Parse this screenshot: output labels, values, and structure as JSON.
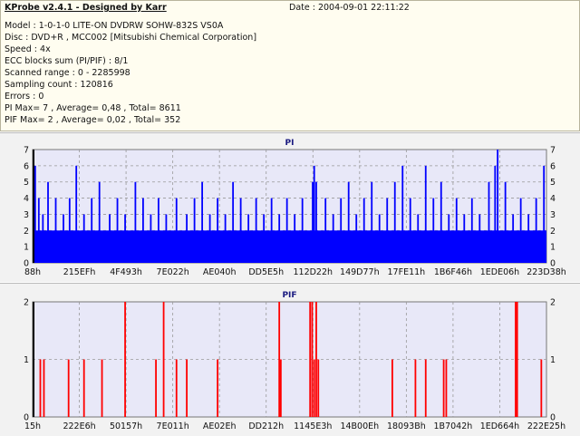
{
  "info": {
    "app_title": "KProbe v2.4.1 - Designed by Karr",
    "date": "Date : 2004-09-01 22:11:22",
    "lines": [
      "Model : 1-0-1-0 LITE-ON DVDRW SOHW-832S  VS0A",
      "Disc : DVD+R , MCC002 [Mitsubishi Chemical Corporation]",
      "Speed : 4x",
      "ECC blocks sum (PI/PIF) : 8/1",
      "Scanned range : 0 - 2285998",
      "Sampling count : 120816",
      "Errors : 0",
      "PI Max= 7 , Average= 0,48 , Total= 8611",
      "PIF Max= 2 , Average= 0,02 , Total= 352"
    ]
  },
  "colors": {
    "pi_series": "#0000ff",
    "pif_series": "#ff0000",
    "plot_background": "#e8e8f8",
    "grid": "#999999"
  },
  "chart_data": [
    {
      "type": "bar",
      "title": "PI",
      "xlabel": "",
      "ylabel": "",
      "ylim": [
        0,
        7
      ],
      "y_ticks": [
        0,
        1,
        2,
        3,
        4,
        5,
        6,
        7
      ],
      "x_tick_labels": [
        "88h",
        "215EFh",
        "4F493h",
        "7E022h",
        "AE040h",
        "DD5E5h",
        "112D22h",
        "149D77h",
        "17FE11h",
        "1B6F46h",
        "1EDE06h",
        "223D38h"
      ],
      "grid": true,
      "baseline_value": 2,
      "spikes": [
        {
          "x": 0.005,
          "y": 6
        },
        {
          "x": 0.012,
          "y": 4
        },
        {
          "x": 0.02,
          "y": 3
        },
        {
          "x": 0.03,
          "y": 5
        },
        {
          "x": 0.045,
          "y": 4
        },
        {
          "x": 0.06,
          "y": 3
        },
        {
          "x": 0.072,
          "y": 4
        },
        {
          "x": 0.085,
          "y": 6
        },
        {
          "x": 0.1,
          "y": 3
        },
        {
          "x": 0.115,
          "y": 4
        },
        {
          "x": 0.13,
          "y": 5
        },
        {
          "x": 0.15,
          "y": 3
        },
        {
          "x": 0.165,
          "y": 4
        },
        {
          "x": 0.18,
          "y": 3
        },
        {
          "x": 0.2,
          "y": 5
        },
        {
          "x": 0.215,
          "y": 4
        },
        {
          "x": 0.23,
          "y": 3
        },
        {
          "x": 0.245,
          "y": 4
        },
        {
          "x": 0.26,
          "y": 3
        },
        {
          "x": 0.28,
          "y": 4
        },
        {
          "x": 0.3,
          "y": 3
        },
        {
          "x": 0.315,
          "y": 4
        },
        {
          "x": 0.33,
          "y": 5
        },
        {
          "x": 0.345,
          "y": 3
        },
        {
          "x": 0.36,
          "y": 4
        },
        {
          "x": 0.375,
          "y": 3
        },
        {
          "x": 0.39,
          "y": 5
        },
        {
          "x": 0.405,
          "y": 4
        },
        {
          "x": 0.42,
          "y": 3
        },
        {
          "x": 0.435,
          "y": 4
        },
        {
          "x": 0.45,
          "y": 3
        },
        {
          "x": 0.465,
          "y": 4
        },
        {
          "x": 0.48,
          "y": 3
        },
        {
          "x": 0.495,
          "y": 4
        },
        {
          "x": 0.51,
          "y": 3
        },
        {
          "x": 0.525,
          "y": 4
        },
        {
          "x": 0.545,
          "y": 5
        },
        {
          "x": 0.548,
          "y": 6
        },
        {
          "x": 0.552,
          "y": 5
        },
        {
          "x": 0.57,
          "y": 4
        },
        {
          "x": 0.585,
          "y": 3
        },
        {
          "x": 0.6,
          "y": 4
        },
        {
          "x": 0.615,
          "y": 5
        },
        {
          "x": 0.63,
          "y": 3
        },
        {
          "x": 0.645,
          "y": 4
        },
        {
          "x": 0.66,
          "y": 5
        },
        {
          "x": 0.675,
          "y": 3
        },
        {
          "x": 0.69,
          "y": 4
        },
        {
          "x": 0.705,
          "y": 5
        },
        {
          "x": 0.72,
          "y": 6
        },
        {
          "x": 0.735,
          "y": 4
        },
        {
          "x": 0.75,
          "y": 3
        },
        {
          "x": 0.765,
          "y": 6
        },
        {
          "x": 0.78,
          "y": 4
        },
        {
          "x": 0.795,
          "y": 5
        },
        {
          "x": 0.81,
          "y": 3
        },
        {
          "x": 0.825,
          "y": 4
        },
        {
          "x": 0.84,
          "y": 3
        },
        {
          "x": 0.855,
          "y": 4
        },
        {
          "x": 0.87,
          "y": 3
        },
        {
          "x": 0.888,
          "y": 5
        },
        {
          "x": 0.9,
          "y": 6
        },
        {
          "x": 0.905,
          "y": 7
        },
        {
          "x": 0.92,
          "y": 5
        },
        {
          "x": 0.935,
          "y": 3
        },
        {
          "x": 0.95,
          "y": 4
        },
        {
          "x": 0.965,
          "y": 3
        },
        {
          "x": 0.98,
          "y": 4
        },
        {
          "x": 0.995,
          "y": 6
        }
      ]
    },
    {
      "type": "bar",
      "title": "PIF",
      "xlabel": "",
      "ylabel": "",
      "ylim": [
        0,
        2
      ],
      "y_ticks": [
        0,
        1,
        2
      ],
      "x_tick_labels": [
        "15h",
        "222E6h",
        "50157h",
        "7E011h",
        "AE02Eh",
        "DD212h",
        "1145E3h",
        "14B00Eh",
        "18093Bh",
        "1B7042h",
        "1ED664h",
        "222E25h"
      ],
      "grid": true,
      "spikes": [
        {
          "x": 0.015,
          "y": 1
        },
        {
          "x": 0.022,
          "y": 1
        },
        {
          "x": 0.07,
          "y": 1
        },
        {
          "x": 0.1,
          "y": 1
        },
        {
          "x": 0.135,
          "y": 1
        },
        {
          "x": 0.18,
          "y": 2
        },
        {
          "x": 0.255,
          "y": 2
        },
        {
          "x": 0.24,
          "y": 1
        },
        {
          "x": 0.28,
          "y": 1
        },
        {
          "x": 0.3,
          "y": 1
        },
        {
          "x": 0.36,
          "y": 1
        },
        {
          "x": 0.48,
          "y": 2
        },
        {
          "x": 0.483,
          "y": 1
        },
        {
          "x": 0.54,
          "y": 2
        },
        {
          "x": 0.544,
          "y": 2
        },
        {
          "x": 0.548,
          "y": 1
        },
        {
          "x": 0.552,
          "y": 2
        },
        {
          "x": 0.556,
          "y": 1
        },
        {
          "x": 0.7,
          "y": 1
        },
        {
          "x": 0.745,
          "y": 1
        },
        {
          "x": 0.765,
          "y": 1
        },
        {
          "x": 0.8,
          "y": 1
        },
        {
          "x": 0.805,
          "y": 1
        },
        {
          "x": 0.94,
          "y": 2
        },
        {
          "x": 0.943,
          "y": 2
        },
        {
          "x": 0.99,
          "y": 1
        }
      ]
    }
  ]
}
